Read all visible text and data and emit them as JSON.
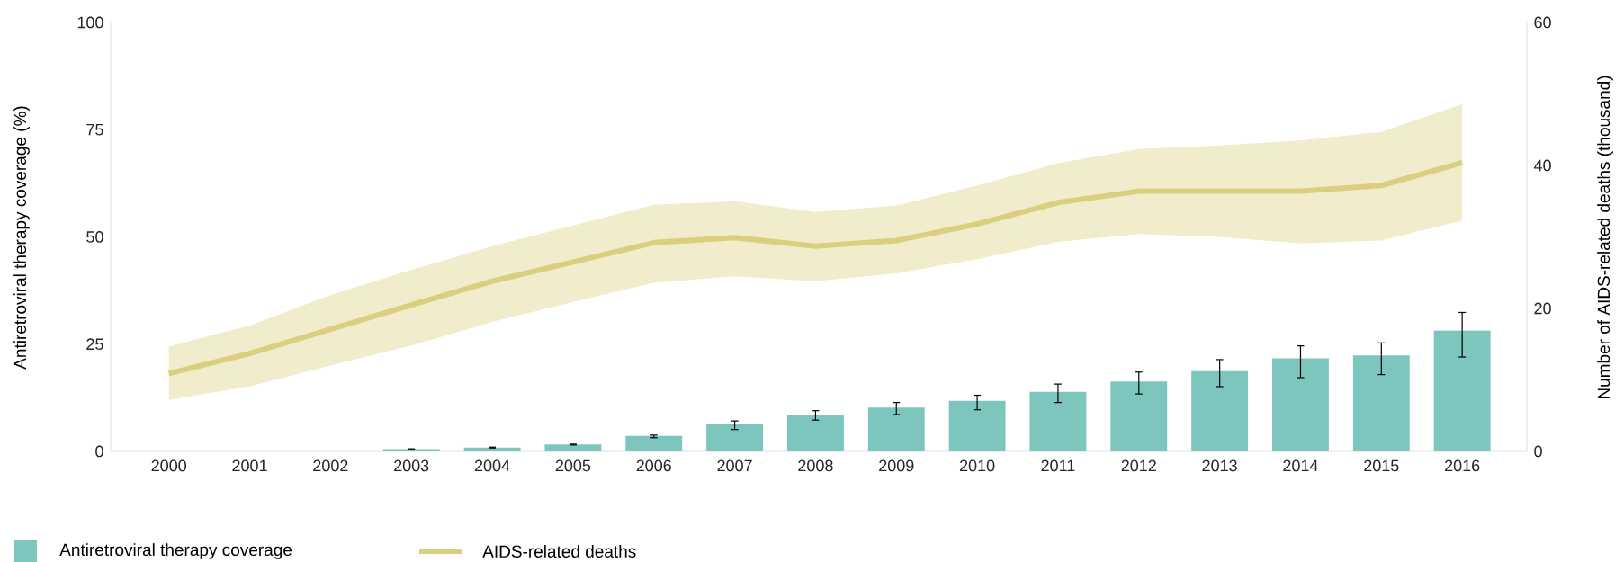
{
  "chart_data": {
    "type": "bar",
    "categories": [
      "2000",
      "2001",
      "2002",
      "2003",
      "2004",
      "2005",
      "2006",
      "2007",
      "2008",
      "2009",
      "2010",
      "2011",
      "2012",
      "2013",
      "2014",
      "2015",
      "2016"
    ],
    "series": [
      {
        "name": "Antiretroviral therapy coverage",
        "color": "#7dc6bd",
        "values": [
          null,
          null,
          null,
          0.5,
          0.9,
          1.6,
          3.6,
          6.5,
          8.6,
          10.2,
          11.8,
          13.9,
          16.3,
          18.7,
          21.7,
          22.4,
          28.2
        ],
        "errors": [
          null,
          null,
          null,
          [
            0.4,
            0.6
          ],
          [
            0.8,
            1.0
          ],
          [
            1.5,
            1.7
          ],
          [
            3.2,
            3.8
          ],
          [
            5.1,
            7.1
          ],
          [
            7.3,
            9.5
          ],
          [
            8.6,
            11.4
          ],
          [
            9.7,
            13.1
          ],
          [
            11.4,
            15.7
          ],
          [
            13.4,
            18.5
          ],
          [
            15.1,
            21.4
          ],
          [
            17.2,
            24.6
          ],
          [
            17.9,
            25.3
          ],
          [
            22.0,
            32.4
          ]
        ]
      },
      {
        "name": "AIDS-related deaths",
        "type": "line",
        "axis": "y2",
        "color": "#d9cf7f",
        "values": [
          10.9,
          13.7,
          17.1,
          20.5,
          23.8,
          26.5,
          29.2,
          29.9,
          28.7,
          29.5,
          31.8,
          34.8,
          36.4,
          36.4,
          36.4,
          37.2,
          40.4
        ],
        "lower": [
          7.2,
          9.1,
          12.0,
          14.8,
          18.1,
          20.9,
          23.6,
          24.5,
          23.8,
          24.9,
          26.9,
          29.3,
          30.4,
          30.0,
          29.1,
          29.5,
          32.3
        ],
        "upper": [
          14.7,
          17.6,
          21.9,
          25.4,
          28.7,
          31.6,
          34.5,
          35.0,
          33.5,
          34.4,
          37.2,
          40.3,
          42.3,
          42.8,
          43.5,
          44.7,
          48.6
        ]
      }
    ],
    "ylabel": "Antiretroviral therapy coverage (%)",
    "y2label": "Number of AIDS-related deaths (thousand)",
    "ylim": [
      0,
      100
    ],
    "yticks": [
      0,
      25,
      50,
      75,
      100
    ],
    "y2lim": [
      0,
      60
    ],
    "y2ticks": [
      0,
      20,
      40,
      60
    ],
    "legend": "bottom left"
  }
}
